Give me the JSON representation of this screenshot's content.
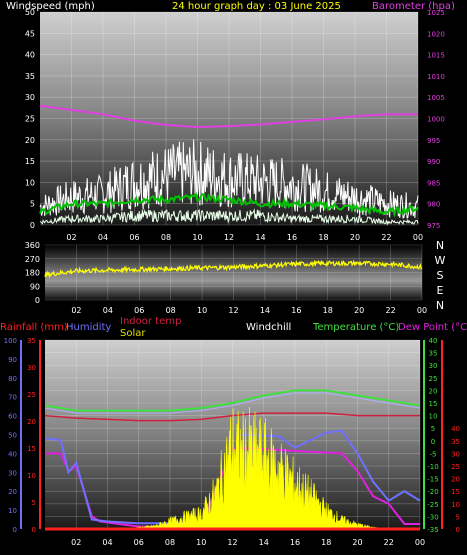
{
  "colors": {
    "windspeed": "#ffffff",
    "gust": "#ffffff",
    "avg_wind": "#00c000",
    "barometer": "#e040e0",
    "direction": "#ffff00",
    "rain": "#ff2020",
    "humidity": "#7070ff",
    "indoor": "#d02040",
    "solar": "#ffff00",
    "windchill": "#ffffff",
    "temperature": "#40e040",
    "dewpoint": "#e020e0",
    "axis_text": "#ffffff",
    "dir_axis_text": "#ffffff"
  },
  "chart_data": [
    {
      "type": "line",
      "title": "24 hour graph day : 03 June 2025",
      "y_left_label": "Windspeed (mph)",
      "y_right_label": "Barometer (hpa)",
      "y_left_ticks": [
        "0",
        "5",
        "10",
        "15",
        "20",
        "25",
        "30",
        "35",
        "40",
        "45",
        "50"
      ],
      "y_right_ticks": [
        "975",
        "980",
        "985",
        "990",
        "995",
        "1000",
        "1005",
        "1010",
        "1015",
        "1020",
        "1025"
      ],
      "ylim_left": [
        0,
        50
      ],
      "ylim_right": [
        975,
        1025
      ],
      "x_ticks": [
        "02",
        "04",
        "06",
        "08",
        "10",
        "12",
        "14",
        "16",
        "18",
        "20",
        "22",
        "00"
      ],
      "xlim_hours": [
        0,
        24
      ],
      "series": [
        {
          "name": "Barometer",
          "axis": "right",
          "x": [
            0,
            2,
            4,
            6,
            8,
            10,
            12,
            14,
            16,
            18,
            20,
            22,
            24
          ],
          "y": [
            1003,
            1002,
            1001,
            999.5,
            998.5,
            998,
            998.2,
            998.6,
            999.2,
            999.8,
            1000.5,
            1001,
            1001
          ]
        },
        {
          "name": "Gust",
          "axis": "left",
          "style": "spiky",
          "x": [
            0,
            2,
            4,
            6,
            8,
            10,
            12,
            14,
            16,
            18,
            20,
            22,
            24
          ],
          "y": [
            6,
            9,
            10,
            14,
            16,
            17,
            15,
            14,
            13,
            11,
            9,
            7,
            6
          ]
        },
        {
          "name": "Avg Wind",
          "axis": "left",
          "x": [
            0,
            2,
            4,
            6,
            8,
            10,
            12,
            14,
            16,
            18,
            20,
            22,
            24
          ],
          "y": [
            3,
            5,
            5,
            6,
            6,
            6.5,
            6,
            5,
            5,
            4.5,
            4,
            3,
            4
          ]
        },
        {
          "name": "Windspeed",
          "axis": "left",
          "style": "spiky",
          "x": [
            0,
            2,
            4,
            6,
            8,
            10,
            12,
            14,
            16,
            18,
            20,
            22,
            24
          ],
          "y": [
            1,
            2,
            2,
            3,
            3,
            3,
            3,
            3,
            2,
            2,
            2,
            1,
            1
          ]
        }
      ]
    },
    {
      "type": "scatter",
      "y_ticks": [
        "360",
        "270",
        "180",
        "90",
        "0"
      ],
      "ylim": [
        0,
        360
      ],
      "right_labels": [
        "N",
        "W",
        "S",
        "E",
        "N"
      ],
      "x_ticks": [
        "02",
        "04",
        "06",
        "08",
        "10",
        "12",
        "14",
        "16",
        "18",
        "20",
        "22",
        "00"
      ],
      "series": [
        {
          "name": "Wind Direction",
          "x": [
            0,
            2,
            4,
            6,
            8,
            10,
            12,
            14,
            16,
            18,
            20,
            22,
            24
          ],
          "y": [
            165,
            190,
            195,
            200,
            205,
            210,
            215,
            225,
            235,
            240,
            240,
            235,
            215
          ]
        }
      ]
    },
    {
      "type": "line",
      "legend": [
        "Rainfall (mm)",
        "Humidity",
        "Indoor temp",
        "Solar",
        "Windchill",
        "Temperature (°C)",
        "Dew Point (°C)"
      ],
      "axis_humidity_ticks": [
        "100",
        "90",
        "80",
        "70",
        "60",
        "50",
        "40",
        "30",
        "20",
        "10",
        "0"
      ],
      "axis_rain_ticks": [
        "35",
        "30",
        "25",
        "20",
        "15",
        "10",
        "5",
        "0"
      ],
      "axis_temp_ticks": [
        "40",
        "35",
        "30",
        "25",
        "20",
        "15",
        "10",
        "5",
        "0",
        "-5",
        "-10",
        "-15",
        "-20",
        "-25",
        "-30",
        "-35"
      ],
      "axis_dew_ticks": [
        "40",
        "35",
        "30",
        "25",
        "20",
        "15",
        "10",
        "5",
        "0"
      ],
      "x_ticks": [
        "02",
        "04",
        "06",
        "08",
        "10",
        "12",
        "14",
        "16",
        "18",
        "20",
        "22",
        "00"
      ],
      "series": [
        {
          "name": "Temperature",
          "axis": "temp",
          "x": [
            0,
            2,
            4,
            6,
            8,
            10,
            12,
            14,
            16,
            18,
            20,
            22,
            24
          ],
          "y": [
            14,
            12,
            12,
            12,
            12,
            13,
            15,
            18,
            20,
            20,
            18,
            16,
            14
          ]
        },
        {
          "name": "Windchill",
          "axis": "temp",
          "x": [
            0,
            2,
            4,
            6,
            8,
            10,
            12,
            14,
            16,
            18,
            20,
            22,
            24
          ],
          "y": [
            13,
            11,
            11,
            11,
            11,
            12,
            14,
            17,
            19,
            19,
            17,
            15,
            13
          ]
        },
        {
          "name": "Indoor temp",
          "axis": "temp",
          "x": [
            0,
            2,
            4,
            6,
            8,
            10,
            12,
            14,
            16,
            18,
            20,
            22,
            24
          ],
          "y": [
            10,
            9,
            8.5,
            8,
            8,
            8.5,
            10,
            11,
            11,
            11,
            10,
            10,
            10
          ]
        },
        {
          "name": "Dew Point",
          "axis": "temp",
          "x": [
            0,
            1,
            1.5,
            2,
            3,
            3.5,
            6,
            10,
            12,
            13,
            16,
            19,
            20,
            21,
            22,
            23,
            24
          ],
          "y": [
            -5,
            -5,
            -12,
            -10,
            -30,
            -32,
            -34,
            -34,
            -3,
            -3,
            -4,
            -5,
            -12,
            -22,
            -25,
            -33,
            -33
          ]
        },
        {
          "name": "Humidity",
          "axis": "humidity",
          "x": [
            0,
            1,
            1.5,
            2,
            3,
            4,
            6,
            10,
            12,
            12.5,
            15,
            16,
            18,
            19,
            20,
            21,
            22,
            23,
            24
          ],
          "y": [
            48,
            47,
            30,
            35,
            5,
            4,
            3,
            3,
            4,
            50,
            49,
            43,
            51,
            52,
            40,
            25,
            15,
            20,
            15
          ]
        },
        {
          "name": "Solar",
          "axis": "humidity",
          "style": "area",
          "x": [
            0,
            5,
            6,
            7,
            8,
            9,
            10,
            11,
            12,
            12.5,
            13,
            14,
            15,
            16,
            17,
            18,
            19,
            20,
            21,
            22,
            24
          ],
          "y": [
            0,
            0,
            1,
            2,
            5,
            8,
            10,
            25,
            55,
            50,
            52,
            48,
            40,
            30,
            22,
            12,
            6,
            3,
            1,
            0,
            0
          ]
        },
        {
          "name": "Rainfall",
          "axis": "rain",
          "x": [
            0,
            24
          ],
          "y": [
            0,
            0
          ]
        }
      ]
    }
  ]
}
